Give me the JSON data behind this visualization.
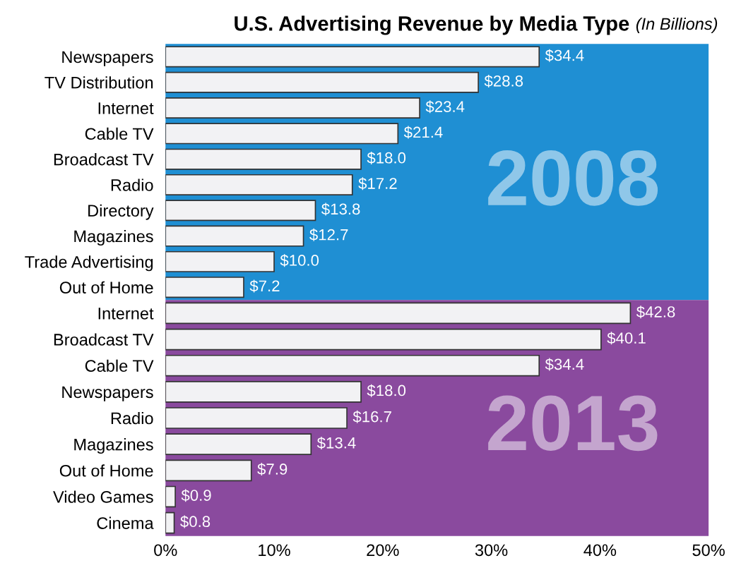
{
  "chart_data": [
    {
      "type": "bar",
      "orientation": "horizontal",
      "title": "U.S. Advertising Revenue by Media Type",
      "subtitle": "(In Billions)",
      "categories": [
        "Newspapers",
        "TV Distribution",
        "Internet",
        "Cable TV",
        "Broadcast TV",
        "Radio",
        "Directory",
        "Magazines",
        "Trade Advertising",
        "Out of Home"
      ],
      "values": [
        34.4,
        28.8,
        23.4,
        21.4,
        18.0,
        17.2,
        13.8,
        12.7,
        10.0,
        7.2
      ],
      "value_labels": [
        "$34.4",
        "$28.8",
        "$23.4",
        "$21.4",
        "$18.0",
        "$17.2",
        "$13.8",
        "$12.7",
        "$10.0",
        "$7.2"
      ],
      "color": "#f2f2f4",
      "xlim": [
        0,
        50
      ],
      "tick_labels": "y",
      "grid": false,
      "legend": false,
      "annotations": [
        "2008"
      ]
    },
    {
      "type": "bar",
      "orientation": "horizontal",
      "categories": [
        "Internet",
        "Broadcast TV",
        "Cable TV",
        "Newspapers",
        "Radio",
        "Magazines",
        "Out of Home",
        "Video Games",
        "Cinema"
      ],
      "values": [
        42.8,
        40.1,
        34.4,
        18.0,
        16.7,
        13.4,
        7.9,
        0.9,
        0.8
      ],
      "value_labels": [
        "$42.8",
        "$40.1",
        "$34.4",
        "$18.0",
        "$16.7",
        "$13.4",
        "$7.9",
        "$0.9",
        "$0.8"
      ],
      "color": "#f2f2f4",
      "xlim": [
        0,
        50
      ],
      "xticks": [
        {
          "value": 0,
          "label": "0%"
        },
        {
          "value": 10,
          "label": "10%"
        },
        {
          "value": 20,
          "label": "20%"
        },
        {
          "value": 30,
          "label": "30%"
        },
        {
          "value": 40,
          "label": "40%"
        },
        {
          "value": 50,
          "label": "50%"
        }
      ],
      "grid": false,
      "legend": false,
      "annotations": [
        "2013"
      ]
    }
  ]
}
